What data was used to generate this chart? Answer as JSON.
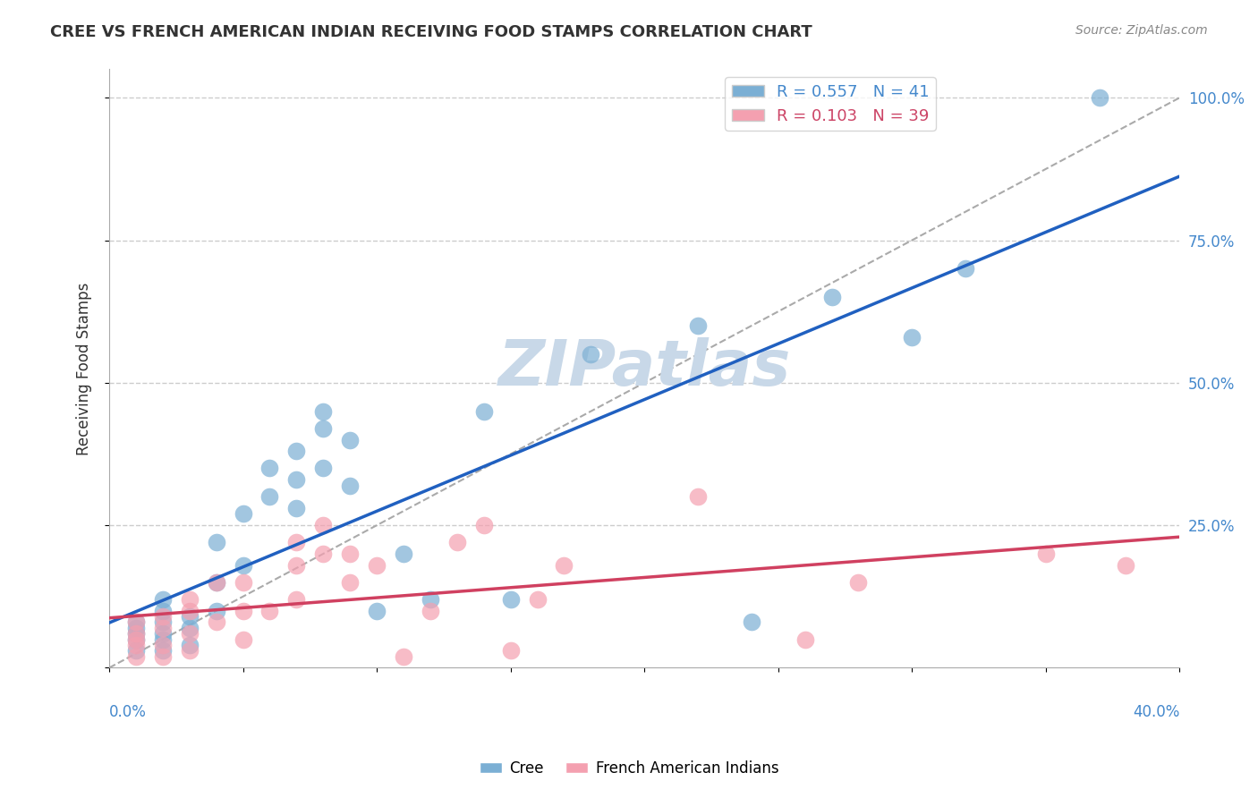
{
  "title": "CREE VS FRENCH AMERICAN INDIAN RECEIVING FOOD STAMPS CORRELATION CHART",
  "source_text": "Source: ZipAtlas.com",
  "ylabel": "Receiving Food Stamps",
  "legend_blue_label": "R = 0.557   N = 41",
  "legend_pink_label": "R = 0.103   N = 39",
  "cree_label": "Cree",
  "french_label": "French American Indians",
  "blue_color": "#7BAFD4",
  "pink_color": "#F4A0B0",
  "blue_line_color": "#2060C0",
  "pink_line_color": "#D04060",
  "watermark": "ZIPatlas",
  "watermark_color": "#C8D8E8",
  "xmin": 0.0,
  "xmax": 0.4,
  "ymin": 0.0,
  "ymax": 1.05,
  "cree_x": [
    0.01,
    0.01,
    0.01,
    0.01,
    0.01,
    0.02,
    0.02,
    0.02,
    0.02,
    0.02,
    0.02,
    0.03,
    0.03,
    0.03,
    0.04,
    0.04,
    0.04,
    0.05,
    0.05,
    0.06,
    0.06,
    0.07,
    0.07,
    0.07,
    0.08,
    0.08,
    0.08,
    0.09,
    0.09,
    0.1,
    0.11,
    0.12,
    0.14,
    0.15,
    0.18,
    0.22,
    0.24,
    0.27,
    0.3,
    0.32,
    0.37
  ],
  "cree_y": [
    0.03,
    0.05,
    0.06,
    0.07,
    0.08,
    0.03,
    0.05,
    0.06,
    0.08,
    0.1,
    0.12,
    0.04,
    0.07,
    0.09,
    0.1,
    0.15,
    0.22,
    0.18,
    0.27,
    0.3,
    0.35,
    0.28,
    0.33,
    0.38,
    0.35,
    0.42,
    0.45,
    0.32,
    0.4,
    0.1,
    0.2,
    0.12,
    0.45,
    0.12,
    0.55,
    0.6,
    0.08,
    0.65,
    0.58,
    0.7,
    1.0
  ],
  "french_x": [
    0.01,
    0.01,
    0.01,
    0.01,
    0.01,
    0.02,
    0.02,
    0.02,
    0.02,
    0.03,
    0.03,
    0.03,
    0.03,
    0.04,
    0.04,
    0.05,
    0.05,
    0.05,
    0.06,
    0.07,
    0.07,
    0.07,
    0.08,
    0.08,
    0.09,
    0.09,
    0.1,
    0.11,
    0.12,
    0.13,
    0.14,
    0.15,
    0.16,
    0.17,
    0.22,
    0.26,
    0.28,
    0.35,
    0.38
  ],
  "french_y": [
    0.02,
    0.04,
    0.05,
    0.06,
    0.08,
    0.02,
    0.04,
    0.07,
    0.09,
    0.03,
    0.06,
    0.1,
    0.12,
    0.08,
    0.15,
    0.05,
    0.1,
    0.15,
    0.1,
    0.12,
    0.18,
    0.22,
    0.2,
    0.25,
    0.15,
    0.2,
    0.18,
    0.02,
    0.1,
    0.22,
    0.25,
    0.03,
    0.12,
    0.18,
    0.3,
    0.05,
    0.15,
    0.2,
    0.18
  ]
}
